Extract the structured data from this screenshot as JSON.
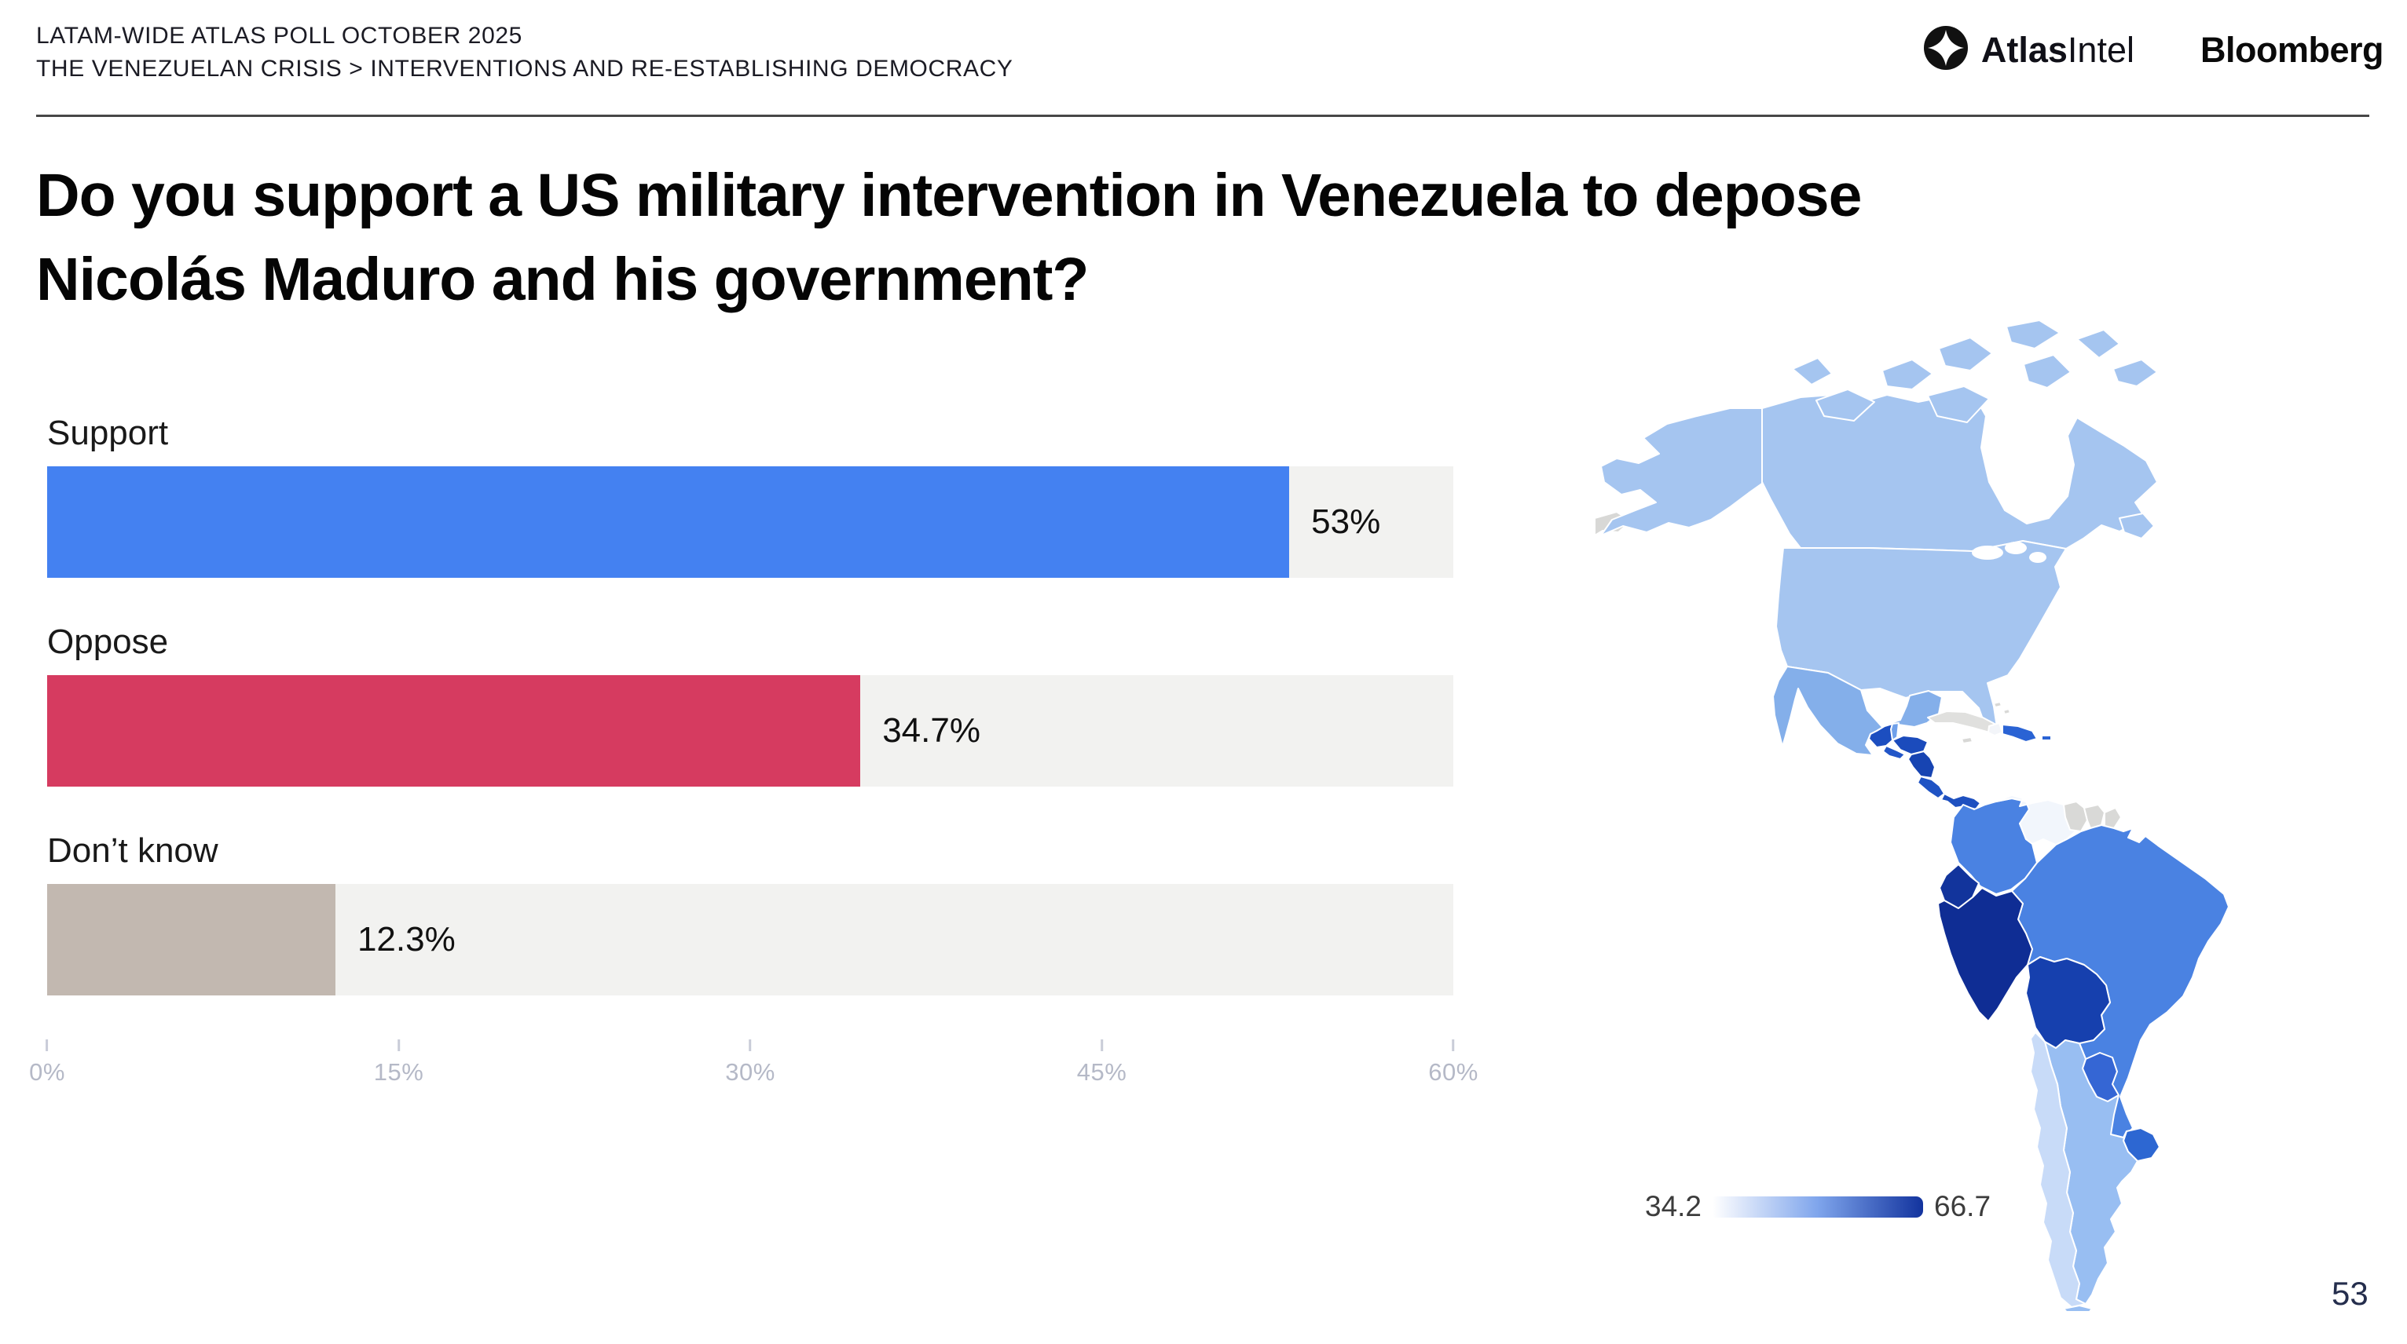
{
  "header": {
    "line1": "LATAM-WIDE ATLAS POLL OCTOBER 2025",
    "line2": "THE VENEZUELAN CRISIS > INTERVENTIONS AND RE-ESTABLISHING DEMOCRACY",
    "brand_atlas_bold": "Atlas",
    "brand_atlas_regular": "Intel",
    "brand_bloomberg": "Bloomberg"
  },
  "title": {
    "line1": "Do you support a US military intervention in Venezuela to depose",
    "line2": "Nicolás Maduro and his government?"
  },
  "chart_data": {
    "type": "bar",
    "orientation": "horizontal",
    "categories": [
      "Support",
      "Oppose",
      "Don’t know"
    ],
    "values": [
      53,
      34.7,
      12.3
    ],
    "value_labels": [
      "53%",
      "34.7%",
      "12.3%"
    ],
    "bar_colors": [
      "#4481F1",
      "#D63B60",
      "#C2B8B0"
    ],
    "track_color": "#F2F2F0",
    "xlim": [
      0,
      60
    ],
    "x_ticks": [
      "0%",
      "15%",
      "30%",
      "45%",
      "60%"
    ],
    "grid": false,
    "legend": false
  },
  "map": {
    "type": "choropleth",
    "region": "Americas",
    "legend_min": "34.2",
    "legend_max": "66.7",
    "legend_gradient": [
      "#FFFFFF",
      "#7FA5EC",
      "#12339E"
    ],
    "countries": [
      {
        "id": "chukotka",
        "color": "#D8D8D6"
      },
      {
        "id": "alaska",
        "color": "#A5C5F0"
      },
      {
        "id": "canada",
        "color": "#A5C5F0"
      },
      {
        "id": "arctic-islands",
        "color": "#A5C5F0"
      },
      {
        "id": "newfoundland",
        "color": "#A5C5F0"
      },
      {
        "id": "usa",
        "color": "#A5C5F0"
      },
      {
        "id": "mexico",
        "color": "#84AFEA"
      },
      {
        "id": "cuba",
        "color": "#E0E0DE"
      },
      {
        "id": "jamaica",
        "color": "#D8D8D6"
      },
      {
        "id": "bahamas",
        "color": "#D8D8D6"
      },
      {
        "id": "haiti",
        "color": "#F3F5F9"
      },
      {
        "id": "dominican-republic",
        "color": "#2A63D4"
      },
      {
        "id": "puerto-rico",
        "color": "#2A63D4"
      },
      {
        "id": "guatemala",
        "color": "#1C4EC0"
      },
      {
        "id": "belize",
        "color": "#6FA0EA"
      },
      {
        "id": "honduras",
        "color": "#1B4BBC"
      },
      {
        "id": "el-salvador",
        "color": "#2256C8"
      },
      {
        "id": "nicaragua",
        "color": "#1744B2"
      },
      {
        "id": "costa-rica",
        "color": "#1F53C4"
      },
      {
        "id": "panama",
        "color": "#1E50C0"
      },
      {
        "id": "colombia",
        "color": "#4A82E2"
      },
      {
        "id": "venezuela",
        "color": "#F2F6FC"
      },
      {
        "id": "guyana",
        "color": "#D9D9D7"
      },
      {
        "id": "suriname",
        "color": "#D9D9D7"
      },
      {
        "id": "french-guiana",
        "color": "#D9D9D7"
      },
      {
        "id": "ecuador",
        "color": "#12349C"
      },
      {
        "id": "peru",
        "color": "#0F2D94"
      },
      {
        "id": "bolivia",
        "color": "#1640AE"
      },
      {
        "id": "brazil",
        "color": "#4A82E2"
      },
      {
        "id": "paraguay",
        "color": "#3566D4"
      },
      {
        "id": "uruguay",
        "color": "#2D67D2"
      },
      {
        "id": "argentina",
        "color": "#98BEF2"
      },
      {
        "id": "chile",
        "color": "#C8DBF8"
      },
      {
        "id": "tierra-del-fuego",
        "color": "#98BEF2"
      }
    ]
  },
  "page_number": "53"
}
